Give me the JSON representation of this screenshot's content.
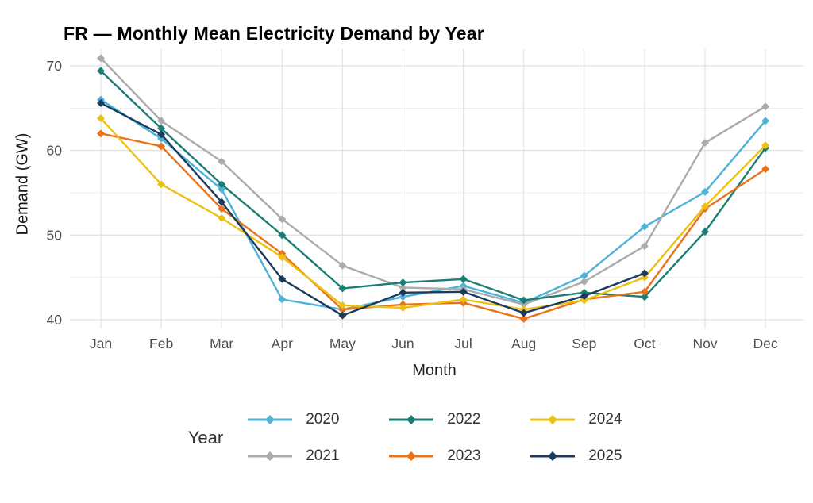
{
  "chart_data": {
    "type": "line",
    "title": "FR — Monthly Mean Electricity Demand by Year",
    "xlabel": "Month",
    "ylabel": "Demand (GW)",
    "categories": [
      "Jan",
      "Feb",
      "Mar",
      "Apr",
      "May",
      "Jun",
      "Jul",
      "Aug",
      "Sep",
      "Oct",
      "Nov",
      "Dec"
    ],
    "ylim": [
      38.9,
      72.3
    ],
    "yticks_major": [
      40,
      50,
      60,
      70
    ],
    "yticks_minor": [
      45,
      55,
      65
    ],
    "grid": true,
    "marker": "diamond",
    "legend_title": "Year",
    "legend_position": "bottom",
    "series": [
      {
        "name": "2020",
        "color": "#4FB3D9",
        "values": [
          66.0,
          61.4,
          55.4,
          42.4,
          41.2,
          42.7,
          44.0,
          42.0,
          45.2,
          51.0,
          55.1,
          63.5
        ]
      },
      {
        "name": "2021",
        "color": "#ABABAB",
        "values": [
          70.9,
          63.5,
          58.7,
          51.9,
          46.4,
          43.8,
          43.6,
          41.8,
          44.5,
          48.7,
          60.9,
          65.2
        ]
      },
      {
        "name": "2022",
        "color": "#1B7E74",
        "values": [
          69.4,
          62.6,
          56.0,
          50.0,
          43.7,
          44.4,
          44.8,
          42.3,
          43.2,
          42.7,
          50.4,
          60.3
        ]
      },
      {
        "name": "2023",
        "color": "#E9731B",
        "values": [
          62.0,
          60.5,
          53.1,
          47.8,
          41.2,
          41.8,
          42.0,
          40.1,
          42.4,
          43.3,
          53.1,
          57.8
        ]
      },
      {
        "name": "2024",
        "color": "#ECC114",
        "values": [
          63.8,
          56.0,
          52.0,
          47.4,
          41.7,
          41.4,
          42.4,
          41.2,
          42.3,
          45.0,
          53.4,
          60.6
        ]
      },
      {
        "name": "2025",
        "color": "#1C3A5E",
        "values": [
          65.6,
          61.9,
          53.9,
          44.8,
          40.5,
          43.2,
          43.3,
          40.8,
          42.8,
          45.5,
          null,
          null
        ]
      }
    ],
    "legend_display_order": [
      "2020",
      "2021",
      "2022",
      "2023",
      "2024",
      "2025"
    ]
  },
  "style": {
    "background": "#FFFFFF",
    "grid_major_color": "#E2E2E2",
    "grid_minor_color": "#EDEDED",
    "tick_label_color": "#4D4D4D",
    "axis_title_color": "#1A1A1A",
    "title_color": "#000000"
  }
}
